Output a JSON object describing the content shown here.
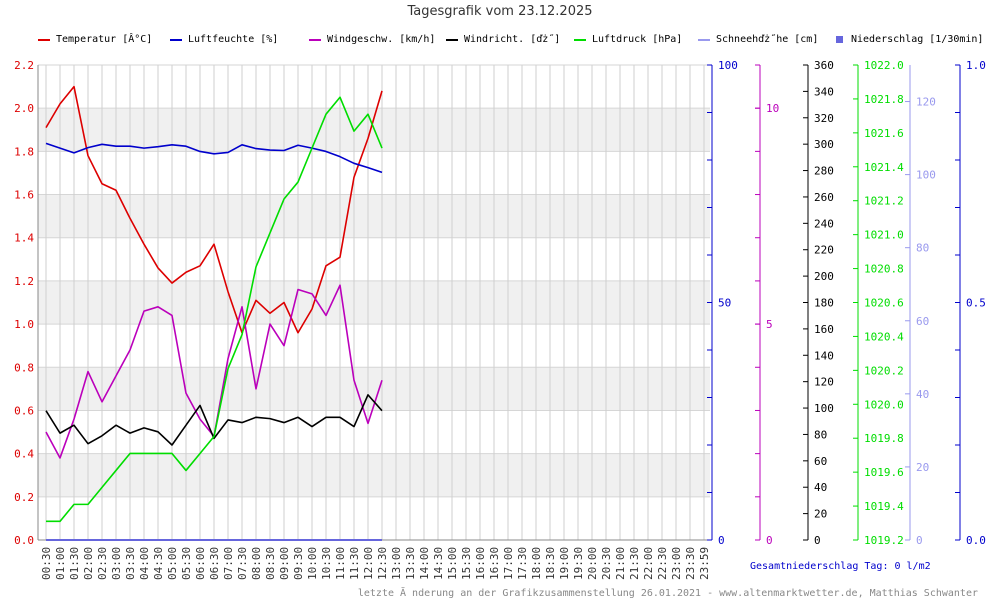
{
  "chart_data": {
    "type": "line",
    "title": "Tagesgrafik vom 23.12.2025",
    "categories": [
      "00:30",
      "01:00",
      "01:30",
      "02:00",
      "02:30",
      "03:00",
      "03:30",
      "04:00",
      "04:30",
      "05:00",
      "05:30",
      "06:00",
      "06:30",
      "07:00",
      "07:30",
      "08:00",
      "08:30",
      "09:00",
      "09:30",
      "10:00",
      "10:30",
      "11:00",
      "11:30",
      "12:00",
      "12:30",
      "13:00",
      "13:30",
      "14:00",
      "14:30",
      "15:00",
      "15:30",
      "16:00",
      "16:30",
      "17:00",
      "17:30",
      "18:00",
      "18:30",
      "19:00",
      "19:30",
      "20:00",
      "20:30",
      "21:00",
      "21:30",
      "22:00",
      "22:30",
      "23:00",
      "23:30",
      "23:59"
    ],
    "legend": [
      {
        "label": "Temperatur [Â°C]",
        "color": "#dd0000"
      },
      {
        "label": "Luftfeuchte [%]",
        "color": "#0000cc"
      },
      {
        "label": "Windgeschw. [km/h]",
        "color": "#bb00bb"
      },
      {
        "label": "Windricht. [ďż˝]",
        "color": "#000000"
      },
      {
        "label": "Luftdruck [hPa]",
        "color": "#00dd00"
      },
      {
        "label": "Schneehďż˝he [cm]",
        "color": "#9999ee"
      },
      {
        "label": "Niederschlag [1/30min]",
        "color": "#6666dd"
      }
    ],
    "axes": [
      {
        "id": "temp",
        "color": "#dd0000",
        "min": 0,
        "max": 2.2,
        "ticks": [
          "0.0",
          "0.2",
          "0.4",
          "0.6",
          "0.8",
          "1.0",
          "1.2",
          "1.4",
          "1.6",
          "1.8",
          "2.0",
          "2.2"
        ]
      },
      {
        "id": "hum",
        "color": "#0000cc",
        "min": 0,
        "max": 100,
        "ticks": [
          "0",
          "50",
          "100"
        ]
      },
      {
        "id": "wind",
        "color": "#bb00bb",
        "min": 0,
        "max": 11,
        "ticks": [
          "0",
          "5",
          "10"
        ]
      },
      {
        "id": "dir",
        "color": "#000000",
        "min": 0,
        "max": 360,
        "ticks": [
          "0",
          "20",
          "40",
          "60",
          "80",
          "100",
          "120",
          "140",
          "160",
          "180",
          "200",
          "220",
          "240",
          "260",
          "280",
          "300",
          "320",
          "340",
          "360"
        ]
      },
      {
        "id": "press",
        "color": "#00dd00",
        "min": 1019.2,
        "max": 1022.0,
        "ticks": [
          "1019.2",
          "1019.4",
          "1019.6",
          "1019.8",
          "1020.0",
          "1020.2",
          "1020.4",
          "1020.6",
          "1020.8",
          "1021.0",
          "1021.2",
          "1021.4",
          "1021.6",
          "1021.8",
          "1022.0"
        ]
      },
      {
        "id": "snow",
        "color": "#9999ee",
        "min": 0,
        "max": 130,
        "ticks": [
          "0",
          "20",
          "40",
          "60",
          "80",
          "100",
          "120"
        ]
      },
      {
        "id": "rain",
        "color": "#0000cc",
        "min": 0,
        "max": 1.0,
        "ticks": [
          "0.0",
          "0.5",
          "1.0"
        ]
      }
    ],
    "series": [
      {
        "name": "Temperatur [Â°C]",
        "axis": "temp",
        "color": "#dd0000",
        "x": [
          "00:30",
          "01:00",
          "01:30",
          "02:00",
          "02:30",
          "03:00",
          "03:30",
          "04:00",
          "04:30",
          "05:00",
          "05:30",
          "06:00",
          "06:30",
          "07:00",
          "07:30",
          "08:00",
          "08:30",
          "09:00",
          "09:30",
          "10:00",
          "10:30",
          "11:00",
          "11:30",
          "12:00",
          "12:30"
        ],
        "values": [
          1.91,
          2.02,
          2.1,
          1.78,
          1.65,
          1.62,
          1.49,
          1.37,
          1.26,
          1.19,
          1.24,
          1.27,
          1.37,
          1.15,
          0.96,
          1.11,
          1.05,
          1.1,
          0.96,
          1.07,
          1.27,
          1.31,
          1.68,
          1.86,
          2.08
        ]
      },
      {
        "name": "Luftfeuchte [%]",
        "axis": "hum",
        "color": "#0000cc",
        "x": [
          "00:30",
          "01:00",
          "01:30",
          "02:00",
          "02:30",
          "03:00",
          "03:30",
          "04:00",
          "04:30",
          "05:00",
          "05:30",
          "06:00",
          "06:30",
          "07:00",
          "07:30",
          "08:00",
          "08:30",
          "09:00",
          "09:30",
          "10:00",
          "10:30",
          "11:00",
          "11:30",
          "12:00",
          "12:30"
        ],
        "values": [
          83.5,
          82.5,
          81.5,
          82.6,
          83.3,
          82.9,
          82.9,
          82.5,
          82.8,
          83.2,
          82.9,
          81.8,
          81.3,
          81.6,
          83.2,
          82.4,
          82.1,
          82.0,
          83.1,
          82.5,
          81.8,
          80.7,
          79.3,
          78.4,
          77.4
        ]
      },
      {
        "name": "Windgeschw. [km/h]",
        "axis": "wind",
        "color": "#bb00bb",
        "x": [
          "00:30",
          "01:00",
          "01:30",
          "02:00",
          "02:30",
          "03:00",
          "03:30",
          "04:00",
          "04:30",
          "05:00",
          "05:30",
          "06:00",
          "06:30",
          "07:00",
          "07:30",
          "08:00",
          "08:30",
          "09:00",
          "09:30",
          "10:00",
          "10:30",
          "11:00",
          "11:30",
          "12:00",
          "12:30"
        ],
        "values": [
          2.5,
          1.9,
          2.8,
          3.9,
          3.2,
          3.8,
          4.4,
          5.3,
          5.4,
          5.2,
          3.4,
          2.8,
          2.4,
          4.2,
          5.4,
          3.5,
          5.0,
          4.5,
          5.8,
          5.7,
          5.2,
          5.9,
          3.7,
          2.7,
          3.7
        ]
      },
      {
        "name": "Windricht. [ďż˝]",
        "axis": "dir",
        "color": "#000000",
        "x": [
          "00:30",
          "01:00",
          "01:30",
          "02:00",
          "02:30",
          "03:00",
          "03:30",
          "04:00",
          "04:30",
          "05:00",
          "05:30",
          "06:00",
          "06:30",
          "07:00",
          "07:30",
          "08:00",
          "08:30",
          "09:00",
          "09:30",
          "10:00",
          "10:30",
          "11:00",
          "11:30",
          "12:00",
          "12:30"
        ],
        "values": [
          98,
          81,
          87,
          73,
          79,
          87,
          81,
          85,
          82,
          72,
          87,
          102,
          77,
          91,
          89,
          93,
          92,
          89,
          93,
          86,
          93,
          93,
          86,
          110,
          98
        ]
      },
      {
        "name": "Luftdruck [hPa]",
        "axis": "press",
        "color": "#00dd00",
        "x": [
          "00:30",
          "01:00",
          "01:30",
          "02:00",
          "02:30",
          "03:00",
          "03:30",
          "04:00",
          "04:30",
          "05:00",
          "05:30",
          "06:00",
          "06:30",
          "07:00",
          "07:30",
          "08:00",
          "08:30",
          "09:00",
          "09:30",
          "10:00",
          "10:30",
          "11:00",
          "11:30",
          "12:00",
          "12:30"
        ],
        "values": [
          1019.31,
          1019.31,
          1019.41,
          1019.41,
          1019.51,
          1019.61,
          1019.71,
          1019.71,
          1019.71,
          1019.71,
          1019.61,
          1019.71,
          1019.81,
          1020.21,
          1020.41,
          1020.81,
          1021.01,
          1021.21,
          1021.31,
          1021.51,
          1021.71,
          1021.81,
          1021.61,
          1021.71,
          1021.51
        ]
      },
      {
        "name": "Niederschlag [1/30min]",
        "axis": "rain",
        "color": "#6666dd",
        "x": [
          "00:30",
          "12:30"
        ],
        "values": [
          0,
          0
        ]
      }
    ],
    "gesamt": "Gesamtniederschlag Tag: 0 l/m2",
    "footer": "letzte Ă nderung an der Grafikzusammenstellung 26.01.2021 - www.altenmarktwetter.de, Matthias Schwanter"
  }
}
